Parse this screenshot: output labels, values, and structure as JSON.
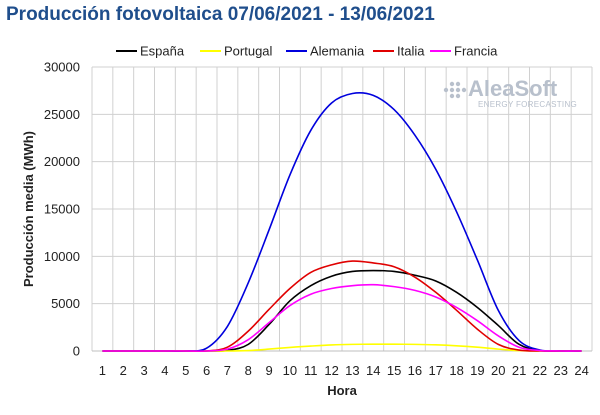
{
  "title": "Producción fotovoltaica 07/06/2021 - 13/06/2021",
  "logo": {
    "name": "AleaSoft",
    "tagline": "ENERGY FORECASTING"
  },
  "chart_data": {
    "type": "line",
    "xlabel": "Hora",
    "ylabel": "Producción media (MWh)",
    "ylim": [
      0,
      30000
    ],
    "yticks": [
      0,
      5000,
      10000,
      15000,
      20000,
      25000,
      30000
    ],
    "grid": true,
    "legend_position": "top",
    "x": [
      1,
      2,
      3,
      4,
      5,
      6,
      7,
      8,
      9,
      10,
      11,
      12,
      13,
      14,
      15,
      16,
      17,
      18,
      19,
      20,
      21,
      22,
      23,
      24
    ],
    "series": [
      {
        "name": "España",
        "color": "#000000",
        "values": [
          0,
          0,
          0,
          0,
          0,
          0,
          60,
          700,
          2800,
          5300,
          6900,
          7900,
          8400,
          8500,
          8400,
          8000,
          7400,
          6200,
          4600,
          2700,
          700,
          50,
          0,
          0
        ]
      },
      {
        "name": "Portugal",
        "color": "#ffff00",
        "values": [
          0,
          0,
          0,
          0,
          0,
          0,
          0,
          50,
          200,
          380,
          520,
          640,
          700,
          720,
          720,
          700,
          650,
          550,
          400,
          200,
          40,
          0,
          0,
          0
        ]
      },
      {
        "name": "Alemania",
        "color": "#0000dd",
        "values": [
          0,
          0,
          0,
          0,
          0,
          300,
          2600,
          7200,
          12800,
          18600,
          23300,
          26200,
          27200,
          27000,
          25500,
          22800,
          19200,
          14700,
          9600,
          4300,
          1100,
          100,
          0,
          0
        ]
      },
      {
        "name": "Italia",
        "color": "#e00000",
        "values": [
          0,
          0,
          0,
          0,
          0,
          0,
          400,
          2100,
          4400,
          6600,
          8300,
          9100,
          9500,
          9300,
          8900,
          7800,
          6200,
          4300,
          2300,
          700,
          100,
          0,
          0,
          0
        ]
      },
      {
        "name": "Francia",
        "color": "#ff00ff",
        "values": [
          0,
          0,
          0,
          0,
          0,
          0,
          200,
          1200,
          3000,
          4800,
          6000,
          6600,
          6900,
          7000,
          6800,
          6400,
          5700,
          4600,
          3200,
          1600,
          400,
          50,
          0,
          0
        ]
      }
    ]
  }
}
